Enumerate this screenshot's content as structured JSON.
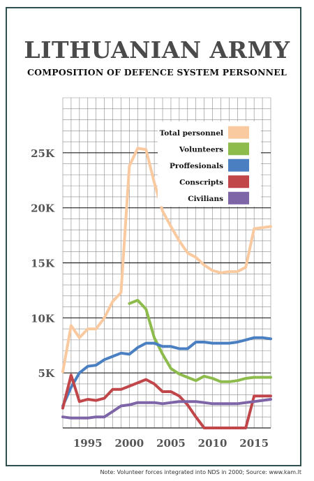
{
  "title": "LITHUANIAN ARMY",
  "subtitle": "COMPOSITION OF DEFENCE SYSTEM PERSONNEL",
  "note": "Note: Volunteer forces integrated into NDS in 2000; Source: www.kam.lt",
  "colors": {
    "total": "#f9c9a0",
    "volunteers": "#8dbb4c",
    "professionals": "#4a7fc1",
    "conscripts": "#c0464a",
    "civilians": "#7d65a8",
    "frame": "#2f4f4f"
  },
  "chart_data": {
    "type": "line",
    "title": "COMPOSITION OF DEFENCE SYSTEM PERSONNEL",
    "xlim": [
      1992,
      2017
    ],
    "ylim": [
      0,
      30000
    ],
    "x_ticks": [
      1995,
      2000,
      2005,
      2010,
      2015
    ],
    "y_ticks": [
      5000,
      10000,
      15000,
      20000,
      25000
    ],
    "y_tick_labels": [
      "5K",
      "10K",
      "15K",
      "20K",
      "25K"
    ],
    "grid": true,
    "legend_position": "top-right",
    "series": [
      {
        "name": "Total personnel",
        "color_key": "total",
        "x": [
          1992,
          1993,
          1994,
          1995,
          1996,
          1997,
          1998,
          1999,
          2000,
          2001,
          2002,
          2003,
          2004,
          2005,
          2006,
          2007,
          2008,
          2009,
          2010,
          2011,
          2012,
          2013,
          2014,
          2015,
          2016,
          2017
        ],
        "values": [
          5100,
          9300,
          8200,
          9000,
          9000,
          10000,
          11500,
          12300,
          23800,
          25400,
          25300,
          22300,
          19700,
          18300,
          17000,
          15900,
          15500,
          14800,
          14300,
          14100,
          14200,
          14200,
          14600,
          18100,
          18200,
          18300
        ]
      },
      {
        "name": "Volunteers",
        "color_key": "volunteers",
        "x": [
          2000,
          2001,
          2002,
          2003,
          2004,
          2005,
          2006,
          2007,
          2008,
          2009,
          2010,
          2011,
          2012,
          2013,
          2014,
          2015,
          2016,
          2017
        ],
        "values": [
          11300,
          11600,
          10800,
          8200,
          6700,
          5400,
          4900,
          4600,
          4300,
          4700,
          4500,
          4200,
          4200,
          4300,
          4500,
          4600,
          4600,
          4600
        ]
      },
      {
        "name": "Proffesionals",
        "color_key": "professionals",
        "x": [
          1992,
          1993,
          1994,
          1995,
          1996,
          1997,
          1998,
          1999,
          2000,
          2001,
          2002,
          2003,
          2004,
          2005,
          2006,
          2007,
          2008,
          2009,
          2010,
          2011,
          2012,
          2013,
          2014,
          2015,
          2016,
          2017
        ],
        "values": [
          2000,
          3700,
          5000,
          5600,
          5700,
          6200,
          6500,
          6800,
          6700,
          7300,
          7700,
          7700,
          7400,
          7400,
          7200,
          7200,
          7800,
          7800,
          7700,
          7700,
          7700,
          7800,
          8000,
          8200,
          8200,
          8100
        ]
      },
      {
        "name": "Conscripts",
        "color_key": "conscripts",
        "x": [
          1992,
          1993,
          1994,
          1995,
          1996,
          1997,
          1998,
          1999,
          2000,
          2001,
          2002,
          2003,
          2004,
          2005,
          2006,
          2007,
          2008,
          2009,
          2010,
          2011,
          2012,
          2013,
          2014,
          2015,
          2016,
          2017
        ],
        "values": [
          1800,
          4800,
          2400,
          2600,
          2500,
          2700,
          3500,
          3500,
          3800,
          4100,
          4400,
          4000,
          3300,
          3300,
          2900,
          2100,
          1000,
          0,
          0,
          0,
          0,
          0,
          0,
          2900,
          2900,
          2900
        ]
      },
      {
        "name": "Civilians",
        "color_key": "civilians",
        "x": [
          1992,
          1993,
          1994,
          1995,
          1996,
          1997,
          1998,
          1999,
          2000,
          2001,
          2002,
          2003,
          2004,
          2005,
          2006,
          2007,
          2008,
          2009,
          2010,
          2011,
          2012,
          2013,
          2014,
          2015,
          2016,
          2017
        ],
        "values": [
          1000,
          900,
          900,
          900,
          1000,
          1000,
          1500,
          2000,
          2100,
          2300,
          2300,
          2300,
          2200,
          2300,
          2400,
          2400,
          2400,
          2300,
          2200,
          2200,
          2200,
          2200,
          2300,
          2400,
          2500,
          2600
        ]
      }
    ]
  }
}
